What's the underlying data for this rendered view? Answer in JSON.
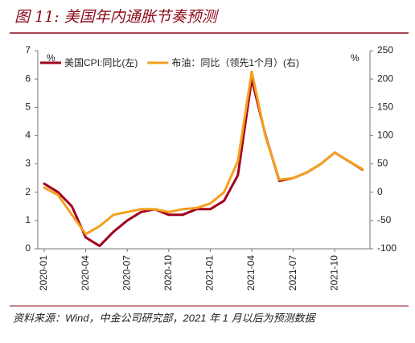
{
  "chart_data": {
    "type": "line",
    "title": "图 11: 美国年内通胀节奏预测",
    "source": "资料来源：Wind，中金公司研究部，2021 年 1 月以后为预测数据",
    "y_label": "%",
    "y2_label": "%",
    "categories": [
      "2020-01",
      null,
      null,
      "2020-04",
      null,
      null,
      "2020-07",
      null,
      null,
      "2020-10",
      null,
      null,
      "2021-01",
      null,
      null,
      "2021-04",
      null,
      null,
      "2021-07",
      null,
      null,
      "2021-10",
      null,
      null
    ],
    "series": [
      {
        "name": "美国CPI:同比(左)",
        "color": "#a0001e",
        "axis": "y",
        "values": [
          2.3,
          2.0,
          1.5,
          0.4,
          0.1,
          0.6,
          1.0,
          1.3,
          1.4,
          1.2,
          1.2,
          1.4,
          1.4,
          1.7,
          2.6,
          6.0,
          4.0,
          2.4,
          2.5,
          2.7,
          3.0,
          3.4,
          3.1,
          2.8
        ]
      },
      {
        "name": "布油：同比（领先1个月）(右)",
        "color": "#f5a01e",
        "axis": "y2",
        "values": [
          8,
          -5,
          -40,
          -74,
          -60,
          -40,
          -35,
          -30,
          -30,
          -35,
          -30,
          -28,
          -20,
          0,
          55,
          213,
          98,
          22,
          25,
          35,
          50,
          70,
          55,
          41
        ]
      }
    ],
    "ylim": [
      0,
      7
    ],
    "yticks": [
      0,
      1,
      2,
      3,
      4,
      5,
      6,
      7
    ],
    "y2lim": [
      -100,
      250
    ],
    "y2ticks": [
      -100,
      -50,
      0,
      50,
      100,
      150,
      200,
      250
    ]
  }
}
